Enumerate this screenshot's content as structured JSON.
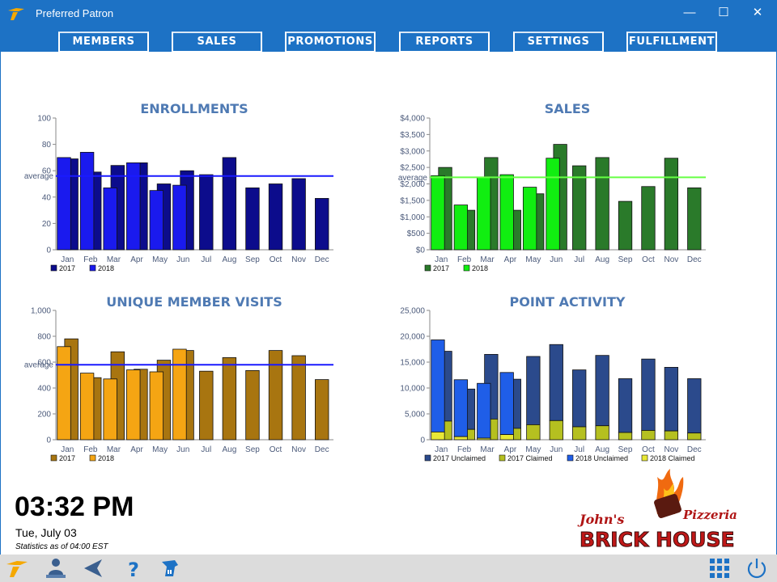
{
  "window": {
    "title": "Preferred Patron",
    "minimize": "—",
    "maximize": "☐",
    "close": "✕"
  },
  "nav": {
    "items": [
      "MEMBERS",
      "SALES",
      "PROMOTIONS",
      "REPORTS",
      "SETTINGS",
      "FULFILLMENT"
    ]
  },
  "footer": {
    "time": "03:32 PM",
    "date": "Tue, July 03",
    "stats_note": "Statistics as of 04:00 EST"
  },
  "logo": {
    "line1": "John's",
    "line2": "Pizzeria",
    "line3": "BRICK HOUSE"
  },
  "toolbar": {
    "icons": [
      "app-logo-icon",
      "user-admin-icon",
      "back-arrow-icon",
      "help-icon",
      "fulfillment-icon",
      "grid-menu-icon",
      "power-icon"
    ]
  },
  "colors": {
    "titlebar": "#1d72c5",
    "chart_title": "#4f7ab3",
    "avg_line_blue": "#1a1aff",
    "avg_line_green": "#66ff44"
  },
  "chart_data": [
    {
      "id": "enrollments",
      "type": "bar",
      "title": "ENROLLMENTS",
      "categories": [
        "Jan",
        "Feb",
        "Mar",
        "Apr",
        "May",
        "Jun",
        "Jul",
        "Aug",
        "Sep",
        "Oct",
        "Nov",
        "Dec"
      ],
      "ylim": [
        0,
        100
      ],
      "yticks": [
        "0",
        "20",
        "40",
        "60",
        "80",
        "100"
      ],
      "average_label": "average",
      "average": 56,
      "series": [
        {
          "name": "2017",
          "color": "#0c0c8c",
          "values": [
            69,
            59,
            64,
            66,
            50,
            60,
            57,
            70,
            47,
            50,
            54,
            39
          ]
        },
        {
          "name": "2018",
          "color": "#1a1aee",
          "values": [
            70,
            74,
            47,
            66,
            45,
            49,
            null,
            null,
            null,
            null,
            null,
            null
          ]
        }
      ]
    },
    {
      "id": "sales",
      "type": "bar",
      "title": "SALES",
      "categories": [
        "Jan",
        "Feb",
        "Mar",
        "Apr",
        "May",
        "Jun",
        "Jul",
        "Aug",
        "Sep",
        "Oct",
        "Nov",
        "Dec"
      ],
      "ylim": [
        0,
        4000
      ],
      "yticks": [
        "$0",
        "$500",
        "$1,000",
        "$1,500",
        "$2,000",
        "$2,500",
        "$3,000",
        "$3,500",
        "$4,000"
      ],
      "average_label": "average",
      "average": 2200,
      "series": [
        {
          "name": "2017",
          "color": "#2a7a2a",
          "values": [
            2500,
            1200,
            2800,
            1200,
            1700,
            3200,
            2550,
            2800,
            1470,
            1920,
            2780,
            1880
          ]
        },
        {
          "name": "2018",
          "color": "#11ee11",
          "values": [
            2250,
            1360,
            2200,
            2280,
            1900,
            2780,
            null,
            null,
            null,
            null,
            null,
            null
          ]
        }
      ]
    },
    {
      "id": "unique_member_visits",
      "type": "bar",
      "title": "UNIQUE MEMBER VISITS",
      "categories": [
        "Jan",
        "Feb",
        "Mar",
        "Apr",
        "May",
        "Jun",
        "Jul",
        "Aug",
        "Sep",
        "Oct",
        "Nov",
        "Dec"
      ],
      "ylim": [
        0,
        1000
      ],
      "yticks": [
        "0",
        "200",
        "400",
        "600",
        "800",
        "1,000"
      ],
      "average_label": "average",
      "average": 580,
      "series": [
        {
          "name": "2017",
          "color": "#a87510",
          "values": [
            780,
            480,
            680,
            545,
            615,
            690,
            530,
            635,
            535,
            690,
            650,
            465
          ]
        },
        {
          "name": "2018",
          "color": "#f5a513",
          "values": [
            720,
            515,
            470,
            540,
            525,
            700,
            null,
            null,
            null,
            null,
            null,
            null
          ]
        }
      ]
    },
    {
      "id": "point_activity",
      "type": "bar",
      "title": "POINT ACTIVITY",
      "categories": [
        "Jan",
        "Feb",
        "Mar",
        "Apr",
        "May",
        "Jun",
        "Jul",
        "Aug",
        "Sep",
        "Oct",
        "Nov",
        "Dec"
      ],
      "ylim": [
        0,
        25000
      ],
      "yticks": [
        "0",
        "5,000",
        "10,000",
        "15,000",
        "20,000",
        "25,000"
      ],
      "series": [
        {
          "name": "2017 Unclaimed",
          "color": "#2b4a8c",
          "values": [
            13500,
            7800,
            12500,
            9500,
            13200,
            14700,
            11000,
            13600,
            10400,
            13800,
            12300,
            10500
          ]
        },
        {
          "name": "2017 Claimed",
          "color": "#b5c020",
          "values": [
            3600,
            2000,
            4000,
            2200,
            2900,
            3700,
            2500,
            2700,
            1400,
            1800,
            1700,
            1300
          ]
        },
        {
          "name": "2018 Unclaimed",
          "color": "#1f5ee8",
          "values": [
            17800,
            11000,
            10600,
            12000,
            null,
            null,
            null,
            null,
            null,
            null,
            null,
            null
          ]
        },
        {
          "name": "2018 Claimed",
          "color": "#e8e836",
          "values": [
            1500,
            600,
            300,
            1000,
            null,
            null,
            null,
            null,
            null,
            null,
            null,
            null
          ]
        }
      ]
    }
  ]
}
